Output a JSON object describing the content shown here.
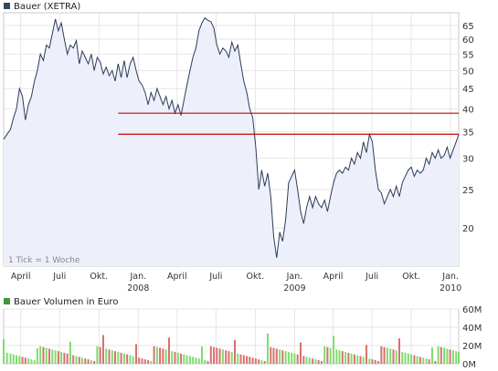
{
  "chart_data": [
    {
      "type": "area",
      "title": "Bauer (XETRA)",
      "title_color": "#37475a",
      "note": "1 Tick = 1 Woche",
      "y_scale": "log",
      "ylim": [
        16,
        70
      ],
      "y_ticks": [
        20,
        25,
        30,
        35,
        40,
        45,
        50,
        55,
        60,
        65
      ],
      "x_range": [
        "2007-02-20",
        "2010-01-20"
      ],
      "x_ticks": [
        {
          "date": "2007-04-01",
          "label": "April",
          "year": ""
        },
        {
          "date": "2007-07-01",
          "label": "Juli",
          "year": ""
        },
        {
          "date": "2007-10-01",
          "label": "Okt.",
          "year": ""
        },
        {
          "date": "2008-01-01",
          "label": "Jan.",
          "year": "2008"
        },
        {
          "date": "2008-04-01",
          "label": "April",
          "year": ""
        },
        {
          "date": "2008-07-01",
          "label": "Juli",
          "year": ""
        },
        {
          "date": "2008-10-01",
          "label": "Okt.",
          "year": ""
        },
        {
          "date": "2009-01-01",
          "label": "Jan.",
          "year": "2009"
        },
        {
          "date": "2009-04-01",
          "label": "April",
          "year": ""
        },
        {
          "date": "2009-07-01",
          "label": "Juli",
          "year": ""
        },
        {
          "date": "2009-10-01",
          "label": "Okt.",
          "year": ""
        },
        {
          "date": "2010-01-01",
          "label": "Jan.",
          "year": "2010"
        }
      ],
      "line_color": "#2d3c5a",
      "fill_color": "#edf0fa",
      "series": [
        {
          "points": [
            [
              "2007-02-20",
              33.5
            ],
            [
              "2007-02-28",
              34.5
            ],
            [
              "2007-03-08",
              35.5
            ],
            [
              "2007-03-15",
              38.0
            ],
            [
              "2007-03-22",
              40.0
            ],
            [
              "2007-03-29",
              45.0
            ],
            [
              "2007-04-05",
              43.0
            ],
            [
              "2007-04-12",
              37.5
            ],
            [
              "2007-04-19",
              41.0
            ],
            [
              "2007-04-26",
              43.0
            ],
            [
              "2007-05-03",
              47.0
            ],
            [
              "2007-05-10",
              50.0
            ],
            [
              "2007-05-17",
              55.0
            ],
            [
              "2007-05-24",
              53.0
            ],
            [
              "2007-05-31",
              58.0
            ],
            [
              "2007-06-07",
              57.0
            ],
            [
              "2007-06-14",
              62.0
            ],
            [
              "2007-06-21",
              67.5
            ],
            [
              "2007-06-28",
              63.0
            ],
            [
              "2007-07-05",
              66.0
            ],
            [
              "2007-07-12",
              60.0
            ],
            [
              "2007-07-19",
              55.0
            ],
            [
              "2007-07-26",
              58.0
            ],
            [
              "2007-08-02",
              57.0
            ],
            [
              "2007-08-09",
              59.5
            ],
            [
              "2007-08-16",
              52.0
            ],
            [
              "2007-08-23",
              56.0
            ],
            [
              "2007-08-30",
              54.0
            ],
            [
              "2007-09-06",
              52.0
            ],
            [
              "2007-09-13",
              55.0
            ],
            [
              "2007-09-20",
              50.0
            ],
            [
              "2007-09-27",
              54.0
            ],
            [
              "2007-10-04",
              52.5
            ],
            [
              "2007-10-11",
              49.0
            ],
            [
              "2007-10-18",
              51.0
            ],
            [
              "2007-10-25",
              48.5
            ],
            [
              "2007-11-01",
              50.0
            ],
            [
              "2007-11-08",
              47.0
            ],
            [
              "2007-11-15",
              52.0
            ],
            [
              "2007-11-22",
              48.0
            ],
            [
              "2007-11-29",
              53.0
            ],
            [
              "2007-12-06",
              48.0
            ],
            [
              "2007-12-13",
              52.0
            ],
            [
              "2007-12-20",
              54.0
            ],
            [
              "2007-12-27",
              50.0
            ],
            [
              "2008-01-03",
              47.0
            ],
            [
              "2008-01-10",
              46.0
            ],
            [
              "2008-01-17",
              44.0
            ],
            [
              "2008-01-24",
              41.0
            ],
            [
              "2008-01-31",
              44.0
            ],
            [
              "2008-02-07",
              42.0
            ],
            [
              "2008-02-14",
              45.0
            ],
            [
              "2008-02-21",
              43.0
            ],
            [
              "2008-02-28",
              41.0
            ],
            [
              "2008-03-06",
              43.0
            ],
            [
              "2008-03-13",
              40.0
            ],
            [
              "2008-03-20",
              42.0
            ],
            [
              "2008-03-27",
              39.0
            ],
            [
              "2008-04-03",
              41.0
            ],
            [
              "2008-04-10",
              38.5
            ],
            [
              "2008-04-17",
              42.0
            ],
            [
              "2008-04-24",
              46.0
            ],
            [
              "2008-05-01",
              50.0
            ],
            [
              "2008-05-08",
              54.0
            ],
            [
              "2008-05-15",
              57.0
            ],
            [
              "2008-05-22",
              63.0
            ],
            [
              "2008-05-29",
              66.0
            ],
            [
              "2008-06-05",
              68.0
            ],
            [
              "2008-06-12",
              67.0
            ],
            [
              "2008-06-19",
              66.5
            ],
            [
              "2008-06-26",
              64.0
            ],
            [
              "2008-07-03",
              58.0
            ],
            [
              "2008-07-10",
              55.0
            ],
            [
              "2008-07-17",
              57.0
            ],
            [
              "2008-07-24",
              56.0
            ],
            [
              "2008-07-31",
              54.0
            ],
            [
              "2008-08-07",
              59.0
            ],
            [
              "2008-08-14",
              56.0
            ],
            [
              "2008-08-21",
              58.0
            ],
            [
              "2008-08-28",
              52.0
            ],
            [
              "2008-09-04",
              47.0
            ],
            [
              "2008-09-11",
              44.0
            ],
            [
              "2008-09-18",
              40.0
            ],
            [
              "2008-09-25",
              38.0
            ],
            [
              "2008-10-02",
              32.0
            ],
            [
              "2008-10-09",
              25.0
            ],
            [
              "2008-10-16",
              28.0
            ],
            [
              "2008-10-23",
              25.5
            ],
            [
              "2008-10-30",
              27.5
            ],
            [
              "2008-11-06",
              24.0
            ],
            [
              "2008-11-13",
              19.0
            ],
            [
              "2008-11-20",
              16.8
            ],
            [
              "2008-11-27",
              19.5
            ],
            [
              "2008-12-04",
              18.5
            ],
            [
              "2008-12-11",
              21.0
            ],
            [
              "2008-12-18",
              26.0
            ],
            [
              "2008-12-25",
              27.0
            ],
            [
              "2009-01-01",
              28.0
            ],
            [
              "2009-01-08",
              25.0
            ],
            [
              "2009-01-15",
              22.0
            ],
            [
              "2009-01-22",
              20.5
            ],
            [
              "2009-01-29",
              22.5
            ],
            [
              "2009-02-05",
              24.0
            ],
            [
              "2009-02-12",
              22.5
            ],
            [
              "2009-02-19",
              24.0
            ],
            [
              "2009-02-26",
              23.0
            ],
            [
              "2009-03-05",
              22.5
            ],
            [
              "2009-03-12",
              23.5
            ],
            [
              "2009-03-19",
              22.0
            ],
            [
              "2009-03-26",
              24.0
            ],
            [
              "2009-04-02",
              26.0
            ],
            [
              "2009-04-09",
              27.5
            ],
            [
              "2009-04-16",
              28.0
            ],
            [
              "2009-04-23",
              27.5
            ],
            [
              "2009-04-30",
              28.5
            ],
            [
              "2009-05-07",
              28.0
            ],
            [
              "2009-05-14",
              30.0
            ],
            [
              "2009-05-21",
              29.0
            ],
            [
              "2009-05-28",
              31.0
            ],
            [
              "2009-06-04",
              30.0
            ],
            [
              "2009-06-11",
              33.0
            ],
            [
              "2009-06-18",
              31.0
            ],
            [
              "2009-06-25",
              34.5
            ],
            [
              "2009-07-02",
              33.0
            ],
            [
              "2009-07-09",
              28.0
            ],
            [
              "2009-07-16",
              25.0
            ],
            [
              "2009-07-23",
              24.5
            ],
            [
              "2009-07-30",
              23.0
            ],
            [
              "2009-08-06",
              24.0
            ],
            [
              "2009-08-13",
              25.0
            ],
            [
              "2009-08-20",
              24.0
            ],
            [
              "2009-08-27",
              25.5
            ],
            [
              "2009-09-03",
              24.0
            ],
            [
              "2009-09-10",
              26.0
            ],
            [
              "2009-09-17",
              27.0
            ],
            [
              "2009-09-24",
              28.0
            ],
            [
              "2009-10-01",
              28.5
            ],
            [
              "2009-10-08",
              27.0
            ],
            [
              "2009-10-15",
              28.0
            ],
            [
              "2009-10-22",
              27.5
            ],
            [
              "2009-10-29",
              28.0
            ],
            [
              "2009-11-05",
              30.0
            ],
            [
              "2009-11-12",
              29.0
            ],
            [
              "2009-11-19",
              31.0
            ],
            [
              "2009-11-26",
              30.0
            ],
            [
              "2009-12-03",
              31.5
            ],
            [
              "2009-12-10",
              30.0
            ],
            [
              "2009-12-17",
              30.5
            ],
            [
              "2009-12-24",
              32.0
            ],
            [
              "2009-12-31",
              30.0
            ],
            [
              "2010-01-07",
              31.5
            ],
            [
              "2010-01-14",
              33.0
            ],
            [
              "2010-01-20",
              34.5
            ]
          ]
        }
      ],
      "reference_lines": [
        {
          "value": 39,
          "from": "2007-11-15",
          "to": "2010-01-20",
          "color": "#cc0000"
        },
        {
          "value": 34.5,
          "from": "2007-11-15",
          "to": "2010-01-20",
          "color": "#cc0000"
        }
      ]
    },
    {
      "type": "bar",
      "title": "Bauer Volumen in Euro",
      "title_color": "#3a9a3a",
      "ylim": [
        0,
        60
      ],
      "y_ticks": [
        {
          "value": 0,
          "label": "0M"
        },
        {
          "value": 20,
          "label": "20M"
        },
        {
          "value": 40,
          "label": "40M"
        },
        {
          "value": 60,
          "label": "60M"
        }
      ],
      "up_color": "#7fdc6e",
      "down_color": "#d87070"
    }
  ]
}
